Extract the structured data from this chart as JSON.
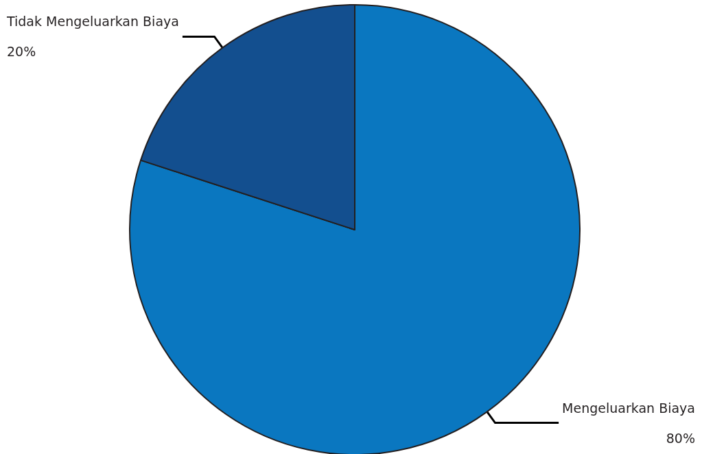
{
  "chart_data": {
    "type": "pie",
    "categories": [
      "Mengeluarkan Biaya",
      "Tidak Mengeluarkan Biaya"
    ],
    "values": [
      80,
      20
    ],
    "colors": [
      "#0a77c0",
      "#134f8f"
    ],
    "value_labels": [
      "80%",
      "20%"
    ],
    "legend": false
  }
}
